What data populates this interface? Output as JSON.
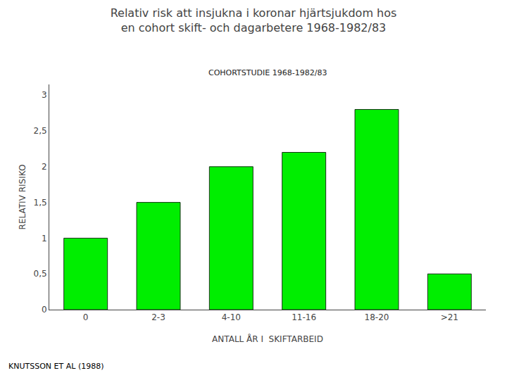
{
  "chart_data": {
    "type": "bar",
    "title": "Relativ risk att insjukna i koronar hjärtsjukdom hos\nen cohort skift- och dagarbetere 1968-1982/83",
    "subtitle": "COHORTSTUDIE 1968-1982/83",
    "ylabel": "RELATIV RISIKO",
    "xlabel": "ANTALL ÅR I  SKIFTARBEID",
    "annotations": [
      "KNUTSSON ET AL (1988)"
    ],
    "categories": [
      "0",
      "2-3",
      "4-10",
      "11-16",
      "18-20",
      ">21"
    ],
    "values": [
      1.0,
      1.5,
      2.0,
      2.2,
      2.8,
      0.5
    ],
    "color": "#00EE00",
    "ylim": [
      0,
      3.15
    ],
    "yticks": [
      0,
      {
        "value": 0.5,
        "label": "0,5"
      },
      1,
      {
        "value": 1.5,
        "label": "1,5"
      },
      2,
      {
        "value": 2.5,
        "label": "2,5"
      },
      3
    ],
    "grid": false
  }
}
